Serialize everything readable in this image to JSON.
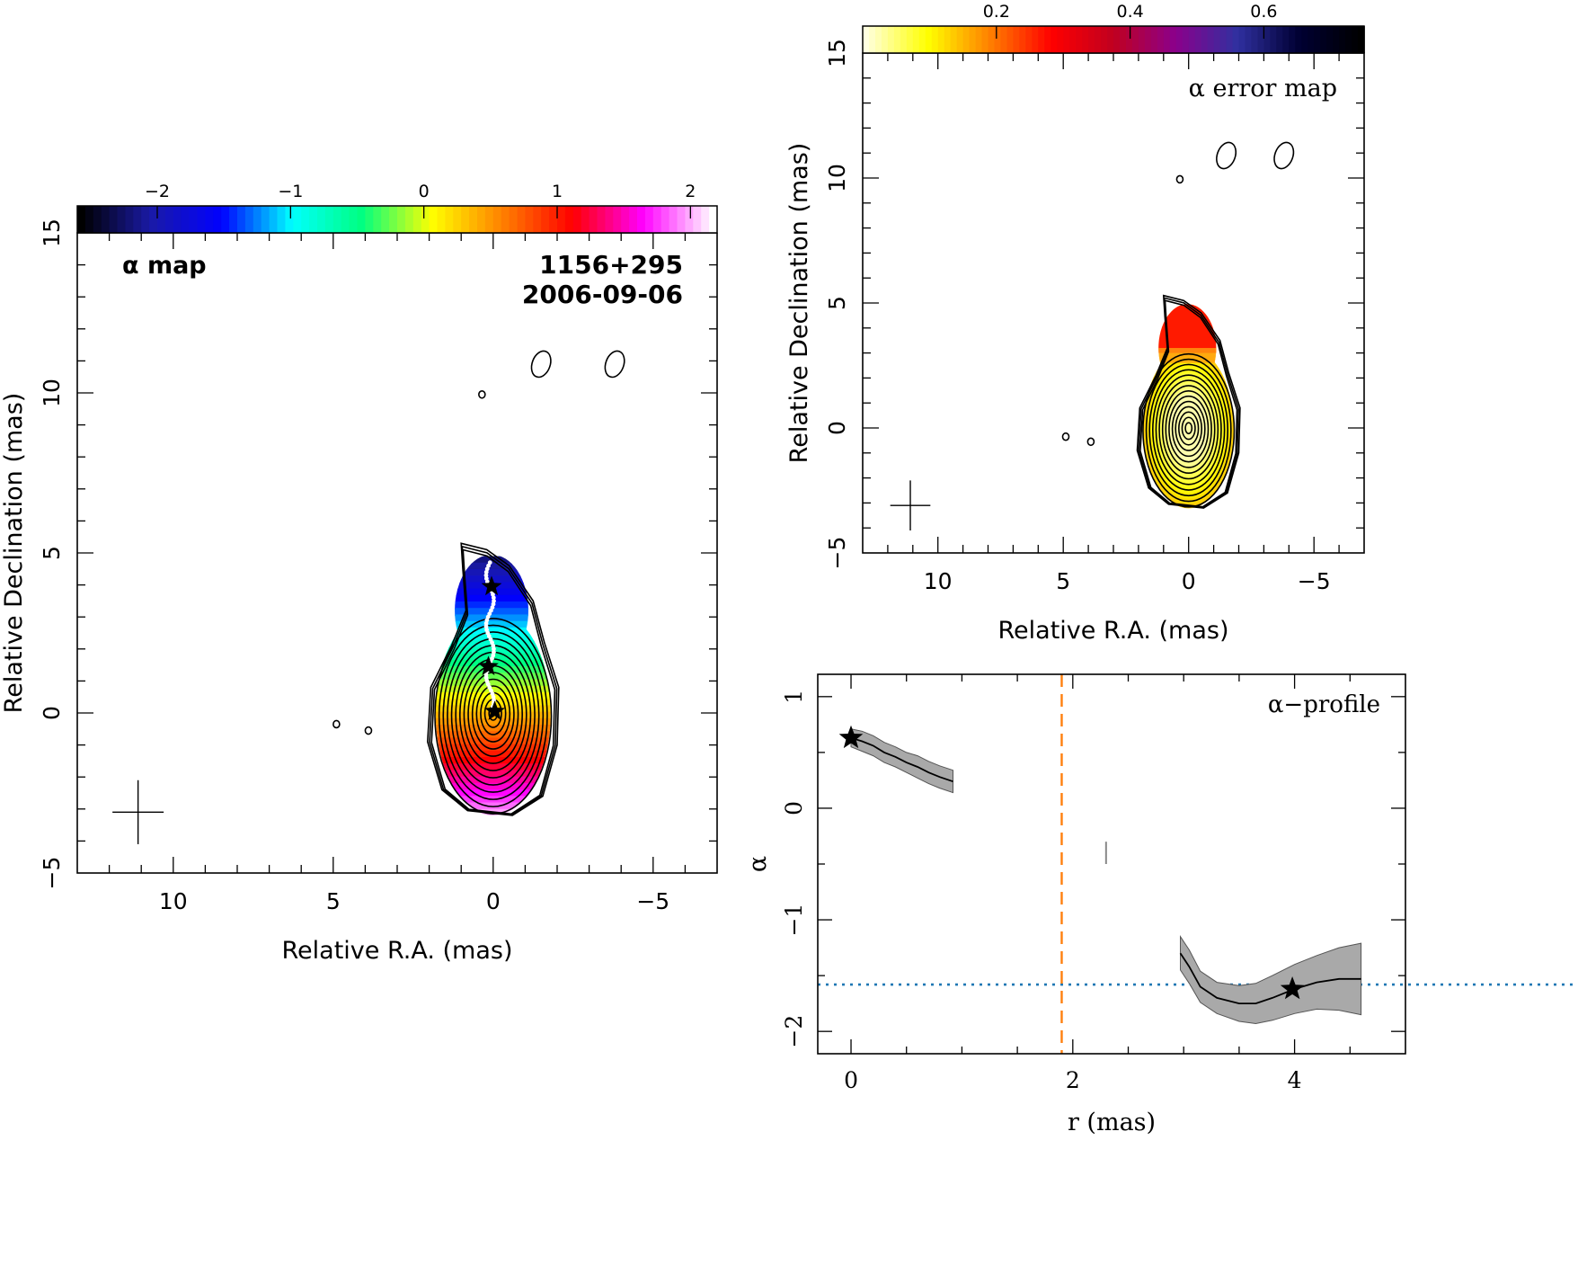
{
  "chart_data": [
    {
      "type": "heatmap",
      "panel": "alpha-map",
      "label": "α map",
      "source": "1156+295",
      "date": "2006-09-06",
      "xlabel": "Relative R.A. (mas)",
      "ylabel": "Relative Declination (mas)",
      "xlim": [
        13,
        -7
      ],
      "ylim": [
        -5,
        15
      ],
      "xticks": [
        10,
        5,
        0,
        -5
      ],
      "yticks": [
        -5,
        0,
        5,
        10,
        15
      ],
      "colorbar": {
        "range": [
          -2.6,
          2.2
        ],
        "ticks": [
          -2,
          -1,
          0,
          1,
          2
        ],
        "colors": [
          "#000000",
          "#1a1aa8",
          "#0000ff",
          "#00ffff",
          "#00ff80",
          "#ffff00",
          "#ff8000",
          "#ff0000",
          "#ff00ff",
          "#ffffff"
        ]
      },
      "beam_center": [
        11.1,
        -3.1
      ],
      "ridge_stars": [
        [
          0.05,
          3.95
        ],
        [
          0.15,
          1.45
        ],
        [
          -0.05,
          0.05
        ]
      ],
      "small_contours": [
        [
          0.35,
          9.95
        ],
        [
          4.9,
          -0.35
        ],
        [
          3.9,
          -0.55
        ],
        [
          -1.5,
          10.9
        ],
        [
          -3.8,
          10.9
        ]
      ]
    },
    {
      "type": "heatmap",
      "panel": "alpha-error-map",
      "label": "α error map",
      "xlabel": "Relative R.A. (mas)",
      "ylabel": "Relative Declination (mas)",
      "xlim": [
        13,
        -7
      ],
      "ylim": [
        -5,
        15
      ],
      "xticks": [
        10,
        5,
        0,
        -5
      ],
      "yticks": [
        -5,
        0,
        5,
        10,
        15
      ],
      "colorbar": {
        "range": [
          0.0,
          0.75
        ],
        "ticks": [
          0.2,
          0.4,
          0.6
        ],
        "colors": [
          "#ffffe0",
          "#ffff00",
          "#ff8000",
          "#ff0000",
          "#c00020",
          "#8b008b",
          "#3030a0",
          "#000033",
          "#000000"
        ]
      },
      "beam_center": [
        11.1,
        -3.1
      ],
      "small_contours": [
        [
          0.35,
          9.95
        ],
        [
          4.9,
          -0.35
        ],
        [
          3.9,
          -0.55
        ],
        [
          -1.5,
          10.9
        ],
        [
          -3.8,
          10.9
        ]
      ]
    },
    {
      "type": "line",
      "panel": "alpha-profile",
      "label": "α−profile",
      "xlabel": "r (mas)",
      "ylabel": "α",
      "xlim": [
        -0.3,
        5.0
      ],
      "ylim": [
        -2.2,
        1.2
      ],
      "xticks": [
        0,
        2,
        4
      ],
      "yticks": [
        -2,
        -1,
        0,
        1
      ],
      "series": [
        {
          "x": [
            0.0,
            0.1,
            0.2,
            0.3,
            0.4,
            0.5,
            0.6,
            0.7,
            0.8,
            0.92
          ],
          "y": [
            0.63,
            0.6,
            0.56,
            0.5,
            0.46,
            0.41,
            0.37,
            0.32,
            0.28,
            0.24
          ],
          "err": [
            0.08,
            0.09,
            0.09,
            0.09,
            0.09,
            0.09,
            0.1,
            0.1,
            0.1,
            0.1
          ]
        },
        {
          "x": [
            2.97,
            3.05,
            3.15,
            3.3,
            3.5,
            3.65,
            3.8,
            4.0,
            4.2,
            4.4,
            4.6
          ],
          "y": [
            -1.3,
            -1.42,
            -1.6,
            -1.7,
            -1.75,
            -1.75,
            -1.7,
            -1.62,
            -1.56,
            -1.53,
            -1.53
          ],
          "err": [
            0.15,
            0.15,
            0.14,
            0.14,
            0.16,
            0.18,
            0.2,
            0.22,
            0.24,
            0.28,
            0.32
          ]
        }
      ],
      "isolated_point": {
        "x": 2.3,
        "y": -0.4,
        "err": 0.1
      },
      "stars": [
        [
          0.0,
          0.63
        ],
        [
          3.98,
          -1.62
        ]
      ],
      "vline": {
        "x": 1.9,
        "color": "#ff7f0e",
        "style": "dashed"
      },
      "hline": {
        "y": -1.58,
        "color": "#1f77b4",
        "style": "dotted"
      }
    }
  ]
}
